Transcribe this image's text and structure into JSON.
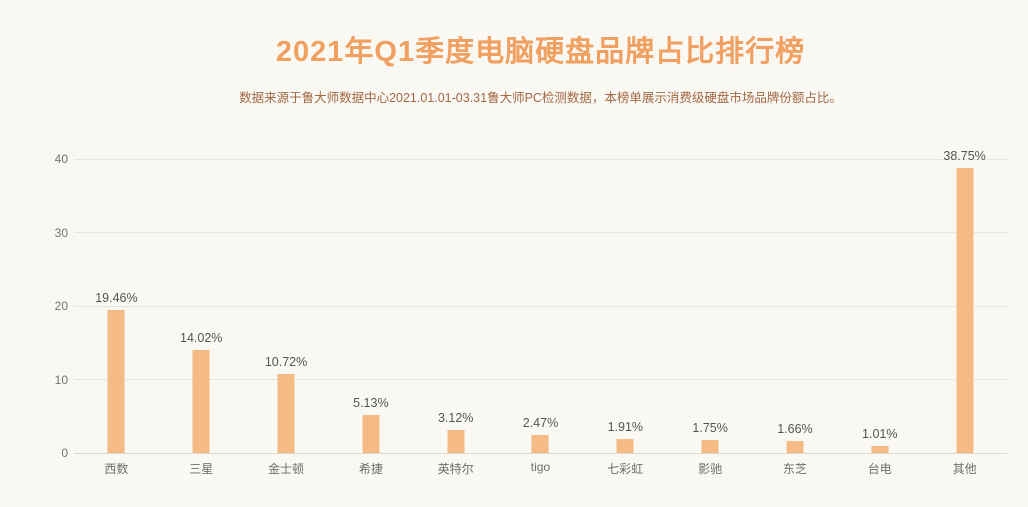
{
  "page": {
    "background_color": "#faf8f2"
  },
  "chart_data": {
    "type": "bar",
    "title": "2021年Q1季度电脑硬盘品牌占比排行榜",
    "subtitle": "数据来源于鲁大师数据中心2021.01.01-03.31鲁大师PC检测数据，本榜单展示消费级硬盘市场品牌份额占比。",
    "categories": [
      "西数",
      "三星",
      "金士顿",
      "希捷",
      "英特尔",
      "tigo",
      "七彩虹",
      "影驰",
      "东芝",
      "台电",
      "其他"
    ],
    "values": [
      19.46,
      14.02,
      10.72,
      5.13,
      3.12,
      2.47,
      1.91,
      1.75,
      1.66,
      1.01,
      38.75
    ],
    "value_labels": [
      "19.46%",
      "14.02%",
      "10.72%",
      "5.13%",
      "3.12%",
      "2.47%",
      "1.91%",
      "1.75%",
      "1.66%",
      "1.01%",
      "38.75%"
    ],
    "xlabel": "",
    "ylabel": "",
    "ylim": [
      0,
      40
    ],
    "yticks": [
      0,
      10,
      20,
      30,
      40
    ],
    "grid": true,
    "legend_position": "none",
    "bar_color": "#f4bb84",
    "title_color": "#f0a060",
    "subtitle_color": "#a26744",
    "axis_label_color": "#737373",
    "value_label_color": "#555555"
  }
}
